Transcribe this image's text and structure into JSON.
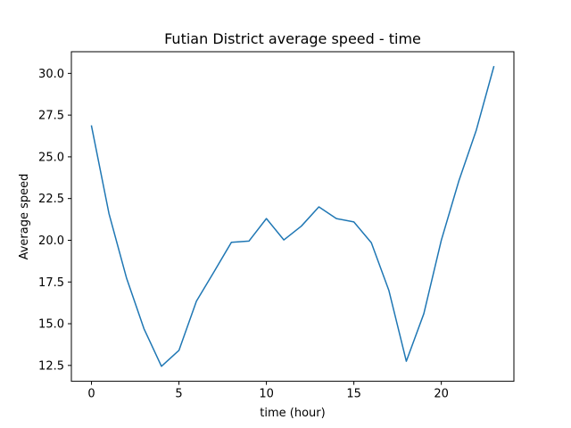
{
  "chart_data": {
    "type": "line",
    "title": "Futian District average speed - time",
    "xlabel": "time (hour)",
    "ylabel": "Average speed",
    "x": [
      0,
      1,
      2,
      3,
      4,
      5,
      6,
      7,
      8,
      9,
      10,
      11,
      12,
      13,
      14,
      15,
      16,
      17,
      18,
      19,
      20,
      21,
      22,
      23
    ],
    "series": [
      {
        "values": [
          26.85,
          21.6,
          17.75,
          14.7,
          12.45,
          13.4,
          16.35,
          18.1,
          19.88,
          19.95,
          21.3,
          20.02,
          20.85,
          22.0,
          21.3,
          21.1,
          19.85,
          17.0,
          12.75,
          15.6,
          20.0,
          23.55,
          26.6,
          30.4
        ],
        "color": "#1f77b4"
      }
    ],
    "xlim": [
      -1.15,
      24.15
    ],
    "ylim": [
      11.55,
      31.3
    ],
    "xticks": [
      0,
      5,
      10,
      15,
      20
    ],
    "xtick_labels": [
      "0",
      "5",
      "10",
      "15",
      "20"
    ],
    "yticks": [
      12.5,
      15.0,
      17.5,
      20.0,
      22.5,
      25.0,
      27.5,
      30.0
    ],
    "ytick_labels": [
      "12.5",
      "15.0",
      "17.5",
      "20.0",
      "22.5",
      "25.0",
      "27.5",
      "30.0"
    ],
    "grid": false,
    "legend": "none"
  }
}
